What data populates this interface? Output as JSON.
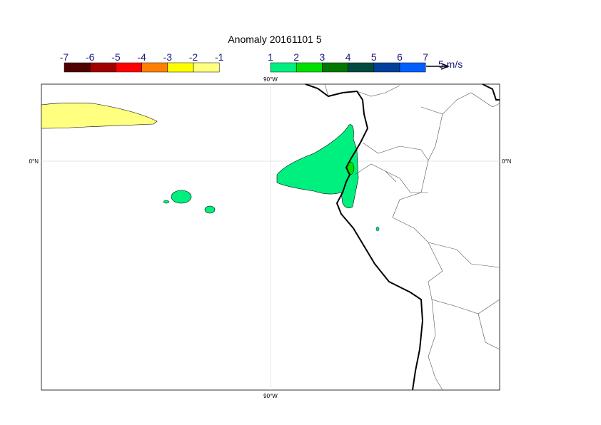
{
  "title": "Anomaly 20161101 5",
  "colorbar_negative": {
    "labels": [
      -7,
      -6,
      -5,
      -4,
      -3,
      -2,
      -1
    ],
    "colors": [
      "#500000",
      "#a00000",
      "#ff0000",
      "#ff8000",
      "#ffff00",
      "#ffff80"
    ]
  },
  "colorbar_positive": {
    "labels": [
      1,
      2,
      3,
      4,
      5,
      6,
      7
    ],
    "colors": [
      "#00f080",
      "#00e000",
      "#007800",
      "#004a40",
      "#00409a",
      "#0060ff"
    ]
  },
  "vector_key": {
    "label": "5 m/s"
  },
  "map": {
    "top_label": "90°W",
    "bottom_label": "90°W",
    "left_label": "0°N",
    "right_label": "0°N"
  }
}
